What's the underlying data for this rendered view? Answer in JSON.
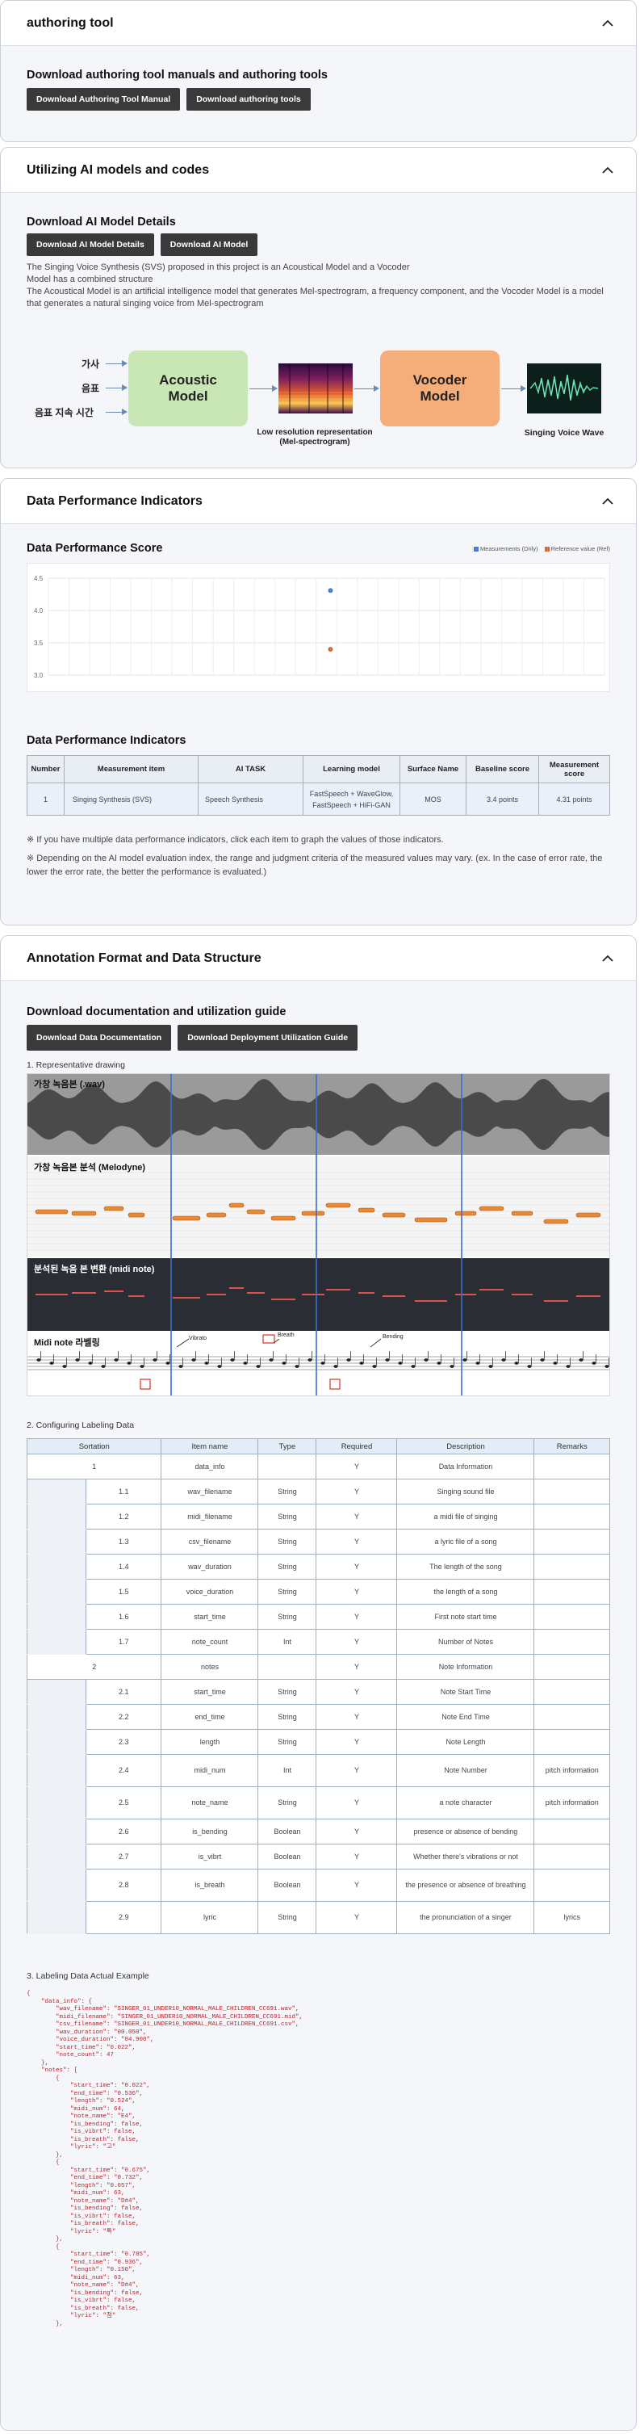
{
  "authoring": {
    "title": "authoring tool",
    "subtitle": "Download authoring tool manuals and authoring tools",
    "btn_manual": "Download Authoring Tool Manual",
    "btn_tools": "Download authoring tools"
  },
  "ai_models": {
    "title": "Utilizing AI models and codes",
    "subtitle": "Download AI Model Details",
    "btn_details": "Download AI Model Details",
    "btn_model": "Download AI Model",
    "desc1": "The Singing Voice Synthesis (SVS) proposed in this project is an Acoustical Model and a Vocoder",
    "desc2": "Model has a combined structure",
    "desc3": "The Acoustical Model is an artificial intelligence model that generates Mel-spectrogram, a frequency component, and the Vocoder Model is a model",
    "desc4": "that generates a natural singing voice from Mel-spectrogram",
    "diagram": {
      "input1": "가사",
      "input2": "음표",
      "input3": "음표 지속 시간",
      "acoustic_line1": "Acoustic",
      "acoustic_line2": "Model",
      "mel_cap1": "Low resolution representation",
      "mel_cap2": "(Mel-spectrogram)",
      "vocoder_line1": "Vocoder",
      "vocoder_line2": "Model",
      "wave_cap": "Singing Voice Wave",
      "colors": {
        "acoustic": "#c9e6b5",
        "vocoder": "#f5ad7a",
        "arrow": "#6a8bb3"
      }
    }
  },
  "performance": {
    "title": "Data Performance Indicators",
    "score_title": "Data Performance Score",
    "legend_measured": "Measurements (Drily)",
    "legend_reference": "Reference value (Ref)",
    "indicators_title": "Data Performance Indicators",
    "table_headers": [
      "Number",
      "Measurement item",
      "AI TASK",
      "Learning model",
      "Surface Name",
      "Baseline score",
      "Measurement score"
    ],
    "table_row": {
      "number": "1",
      "item": "Singing Synthesis (SVS)",
      "task": "Speech Synthesis",
      "model1": "FastSpeech + WaveGlow,",
      "model2": "FastSpeech + HiFi-GAN",
      "surface": "MOS",
      "baseline": "3.4 points",
      "measured": "4.31 points"
    },
    "note1": "※ If you have multiple data performance indicators, click each item to graph the values of those indicators.",
    "note2a": "※ Depending on the AI model evaluation index, the range and judgment criteria of the measured values may vary. (ex. In the case of error rate, the",
    "note2b": "lower the error rate, the better the performance is evaluated.)"
  },
  "chart_data": {
    "type": "scatter",
    "title": "",
    "xlabel": "",
    "ylabel": "",
    "yticks": [
      "4.5",
      "4.0",
      "3.5",
      "3.0"
    ],
    "ylim": [
      3.0,
      4.5
    ],
    "grid": true,
    "legend": "top-right",
    "series": [
      {
        "name": "Measurements (Drily)",
        "values": [
          4.31
        ],
        "color": "#4a7fd6"
      },
      {
        "name": "Reference value (Ref)",
        "values": [
          3.4
        ],
        "color": "#d96a3a"
      }
    ]
  },
  "annotation": {
    "title": "Annotation Format and Data Structure",
    "subtitle": "Download documentation and utilization guide",
    "btn_doc": "Download Data Documentation",
    "btn_guide": "Download Deployment Utilization Guide",
    "sec1": "1. Representative drawing",
    "sec2": "2. Configuring Labeling Data",
    "sec3": "3. Labeling Data Actual Example",
    "drawing": {
      "p1": "가창 녹음본 (.wav)",
      "p2": "가창 녹음본 분석 (Melodyne)",
      "p3": "분석된 녹음 본 변환 (midi note)",
      "p4": "Midi note 라벨링",
      "lbl_vibrato": "Vibrato",
      "lbl_breath": "Breath",
      "lbl_bending": "Bending"
    },
    "cfg_headers": [
      "Sortation",
      "Item name",
      "Type",
      "Required",
      "Description",
      "Remarks"
    ],
    "cfg_rows": [
      {
        "num": "1",
        "sub": "",
        "item": "data_info",
        "type": "",
        "req": "Y",
        "desc": "Data Information",
        "rem": "",
        "level": 0
      },
      {
        "num": "",
        "sub": "1.1",
        "item": "wav_filename",
        "type": "String",
        "req": "Y",
        "desc": "Singing sound file",
        "rem": "",
        "level": 1
      },
      {
        "num": "",
        "sub": "1.2",
        "item": "midi_filename",
        "type": "String",
        "req": "Y",
        "desc": "a midi file of singing",
        "rem": "",
        "level": 1
      },
      {
        "num": "",
        "sub": "1.3",
        "item": "csv_filename",
        "type": "String",
        "req": "Y",
        "desc": "a lyric file of a song",
        "rem": "",
        "level": 1
      },
      {
        "num": "",
        "sub": "1.4",
        "item": "wav_duration",
        "type": "String",
        "req": "Y",
        "desc": "The length of the song",
        "rem": "",
        "level": 1
      },
      {
        "num": "",
        "sub": "1.5",
        "item": "voice_duration",
        "type": "String",
        "req": "Y",
        "desc": "the length of a song",
        "rem": "",
        "level": 1
      },
      {
        "num": "",
        "sub": "1.6",
        "item": "start_time",
        "type": "String",
        "req": "Y",
        "desc": "First note start time",
        "rem": "",
        "level": 1
      },
      {
        "num": "",
        "sub": "1.7",
        "item": "note_count",
        "type": "Int",
        "req": "Y",
        "desc": "Number of Notes",
        "rem": "",
        "level": 1
      },
      {
        "num": "2",
        "sub": "",
        "item": "notes",
        "type": "",
        "req": "Y",
        "desc": "Note Information",
        "rem": "",
        "level": 0
      },
      {
        "num": "",
        "sub": "2.1",
        "item": "start_time",
        "type": "String",
        "req": "Y",
        "desc": "Note Start Time",
        "rem": "",
        "level": 1
      },
      {
        "num": "",
        "sub": "2.2",
        "item": "end_time",
        "type": "String",
        "req": "Y",
        "desc": "Note End Time",
        "rem": "",
        "level": 1
      },
      {
        "num": "",
        "sub": "2.3",
        "item": "length",
        "type": "String",
        "req": "Y",
        "desc": "Note Length",
        "rem": "",
        "level": 1
      },
      {
        "num": "",
        "sub": "2.4",
        "item": "midi_num",
        "type": "Int",
        "req": "Y",
        "desc": "Note Number",
        "rem": "pitch information",
        "level": 1
      },
      {
        "num": "",
        "sub": "2.5",
        "item": "note_name",
        "type": "String",
        "req": "Y",
        "desc": "a note character",
        "rem": "pitch information",
        "level": 1
      },
      {
        "num": "",
        "sub": "2.6",
        "item": "is_bending",
        "type": "Boolean",
        "req": "Y",
        "desc": "presence or absence of bending",
        "rem": "",
        "level": 1
      },
      {
        "num": "",
        "sub": "2.7",
        "item": "is_vibrt",
        "type": "Boolean",
        "req": "Y",
        "desc": "Whether there's vibrations or not",
        "rem": "",
        "level": 1
      },
      {
        "num": "",
        "sub": "2.8",
        "item": "is_breath",
        "type": "Boolean",
        "req": "Y",
        "desc": "the presence or absence of breathing",
        "rem": "",
        "level": 1
      },
      {
        "num": "",
        "sub": "2.9",
        "item": "lyric",
        "type": "String",
        "req": "Y",
        "desc": "the pronunciation of a singer",
        "rem": "lyrics",
        "level": 1
      }
    ],
    "code_lines": [
      "{",
      "    \"data_info\": {",
      "        \"wav_filename\": \"SINGER_01_UNDER10_NORMAL_MALE_CHILDREN_CC691.wav\",",
      "        \"midi_filename\": \"SINGER_01_UNDER10_NORMAL_MALE_CHILDREN_CC691.mid\",",
      "        \"csv_filename\": \"SINGER_01_UNDER10_NORMAL_MALE_CHILDREN_CC691.csv\",",
      "        \"wav_duration\": \"00.050\",",
      "        \"voice_duration\": \"04.900\",",
      "        \"start_time\": \"0.022\",",
      "        \"note_count\": 47",
      "    },",
      "    \"notes\": [",
      "        {",
      "            \"start_time\": \"0.022\",",
      "            \"end_time\": \"0.536\",",
      "            \"length\": \"0.524\",",
      "            \"midi_num\": 64,",
      "            \"note_name\": \"E4\",",
      "            \"is_bending\": false,",
      "            \"is_vibrt\": false,",
      "            \"is_breath\": false,",
      "            \"lyric\": \"고\"",
      "        },",
      "        {",
      "            \"start_time\": \"0.675\",",
      "            \"end_time\": \"0.732\",",
      "            \"length\": \"0.057\",",
      "            \"midi_num\": 63,",
      "            \"note_name\": \"D#4\",",
      "            \"is_bending\": false,",
      "            \"is_vibrt\": false,",
      "            \"is_breath\": false,",
      "            \"lyric\": \"특\"",
      "        },",
      "        {",
      "            \"start_time\": \"0.785\",",
      "            \"end_time\": \"0.936\",",
      "            \"length\": \"0.150\",",
      "            \"midi_num\": 63,",
      "            \"note_name\": \"D#4\",",
      "            \"is_bending\": false,",
      "            \"is_vibrt\": false,",
      "            \"is_breath\": false,",
      "            \"lyric\": \"점\"",
      "        },"
    ]
  }
}
